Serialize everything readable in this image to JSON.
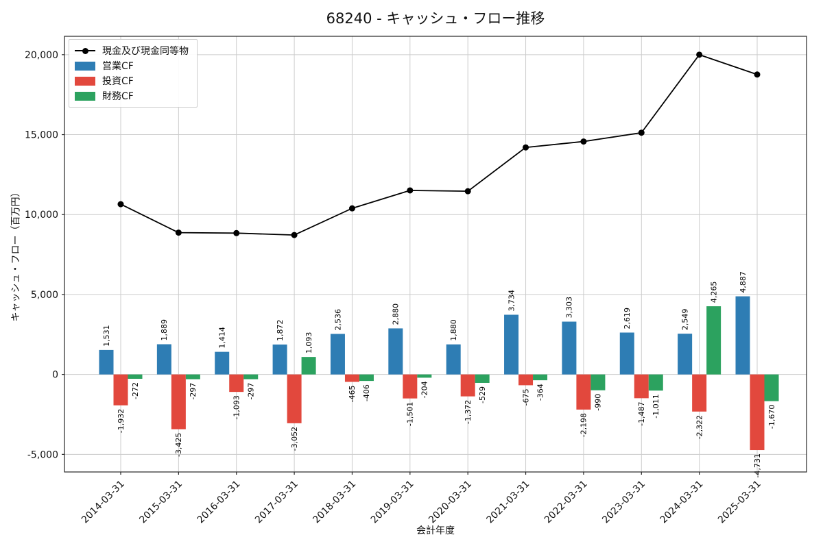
{
  "chart_data": {
    "type": "bar",
    "title": "68240 - キャッシュ・フロー推移",
    "xlabel": "会計年度",
    "ylabel": "キャッシュ・フロー（百万円）",
    "categories": [
      "2014-03-31",
      "2015-03-31",
      "2016-03-31",
      "2017-03-31",
      "2018-03-31",
      "2019-03-31",
      "2020-03-31",
      "2021-03-31",
      "2022-03-31",
      "2023-03-31",
      "2024-03-31",
      "2025-03-31"
    ],
    "series": [
      {
        "key": "operating-cf",
        "name": "営業CF",
        "color": "#2e7db4",
        "values": [
          1531,
          1889,
          1414,
          1872,
          2536,
          2880,
          1880,
          3734,
          3303,
          2619,
          2549,
          4887
        ]
      },
      {
        "key": "investing-cf",
        "name": "投資CF",
        "color": "#e2483d",
        "values": [
          -1932,
          -3425,
          -1093,
          -3052,
          -465,
          -1501,
          -1372,
          -675,
          -2198,
          -1487,
          -2322,
          -4731
        ]
      },
      {
        "key": "financing-cf",
        "name": "財務CF",
        "color": "#2ca25f",
        "values": [
          -272,
          -297,
          -297,
          1093,
          -406,
          -204,
          -529,
          -364,
          -990,
          -1011,
          4265,
          -1670
        ]
      }
    ],
    "line_series": {
      "key": "cash-and-equivalents",
      "name": "現金及び現金同等物",
      "color": "#000000",
      "marker": "circle",
      "values": [
        10650,
        8870,
        8840,
        8720,
        10390,
        11510,
        11460,
        14200,
        14570,
        15120,
        20000,
        18760
      ]
    },
    "ylim": [
      -6100,
      21150
    ],
    "yticks": [
      -5000,
      0,
      5000,
      10000,
      15000,
      20000
    ],
    "grid": true,
    "legend_position": "upper left",
    "value_labels": true,
    "value_label_rotation": 90,
    "xtick_rotation": 45
  }
}
